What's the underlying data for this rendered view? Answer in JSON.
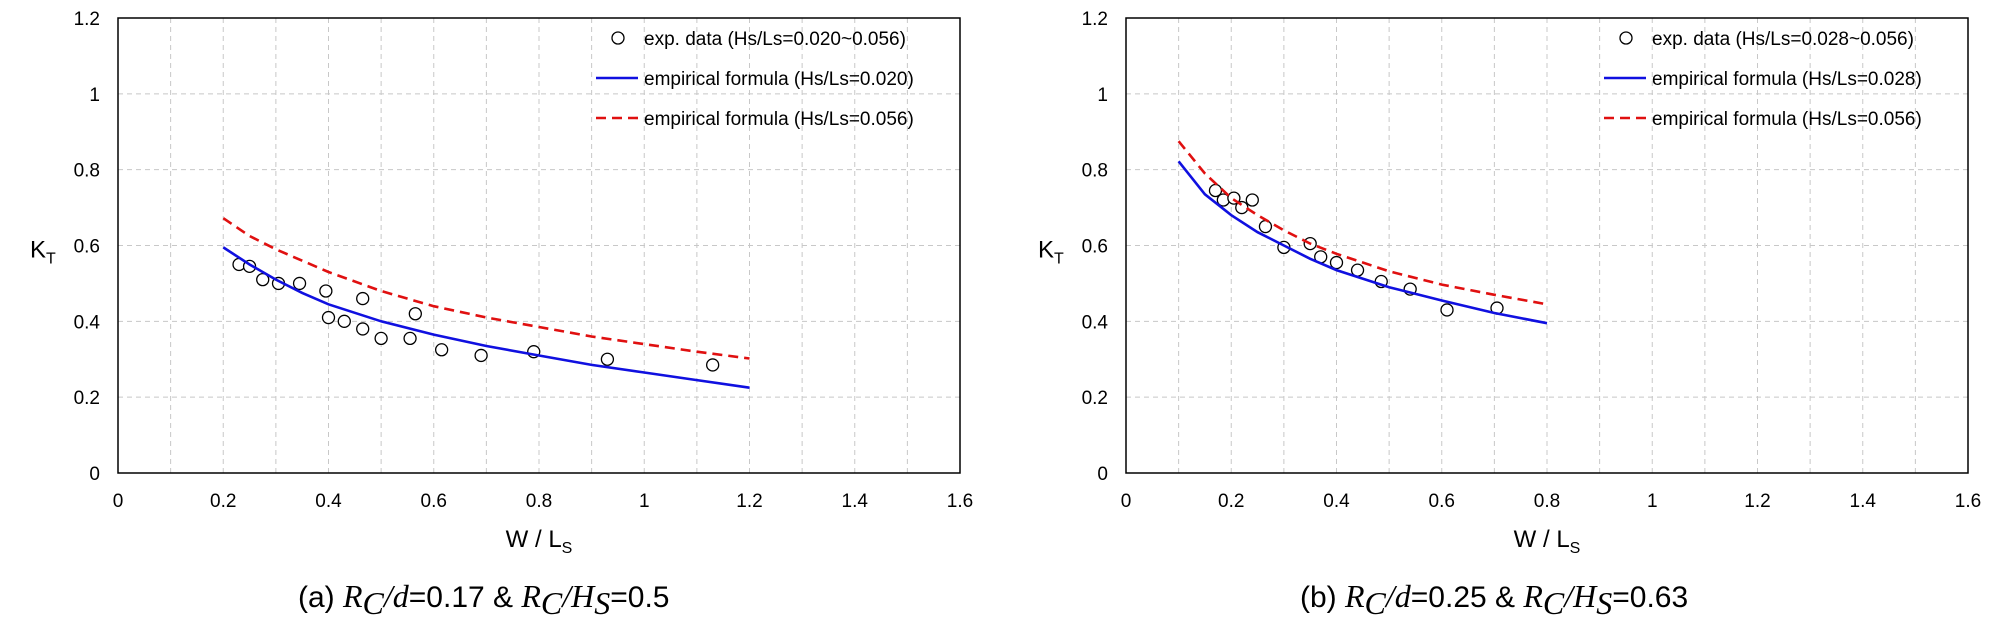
{
  "chart_data": [
    {
      "type": "scatter",
      "xlim": [
        0,
        1.6
      ],
      "ylim": [
        0,
        1.2
      ],
      "x_ticks": [
        "0",
        "0.2",
        "0.4",
        "0.6",
        "0.8",
        "1",
        "1.2",
        "1.4",
        "1.6"
      ],
      "y_ticks": [
        "0",
        "0.2",
        "0.4",
        "0.6",
        "0.8",
        "1",
        "1.2"
      ],
      "xlabel": {
        "main": "W / L",
        "sub": "S"
      },
      "ylabel": {
        "main": "K",
        "sub": "T"
      },
      "grid": true,
      "legend_position": "top-right",
      "series": [
        {
          "name": "exp. data (Hs/Ls=0.020~0.056)",
          "kind": "markers",
          "color": "#000000",
          "points": [
            [
              0.23,
              0.55
            ],
            [
              0.25,
              0.545
            ],
            [
              0.275,
              0.51
            ],
            [
              0.305,
              0.5
            ],
            [
              0.345,
              0.5
            ],
            [
              0.395,
              0.48
            ],
            [
              0.4,
              0.41
            ],
            [
              0.43,
              0.4
            ],
            [
              0.465,
              0.38
            ],
            [
              0.465,
              0.46
            ],
            [
              0.5,
              0.355
            ],
            [
              0.555,
              0.355
            ],
            [
              0.565,
              0.42
            ],
            [
              0.615,
              0.325
            ],
            [
              0.69,
              0.31
            ],
            [
              0.79,
              0.32
            ],
            [
              0.93,
              0.3
            ],
            [
              1.13,
              0.285
            ]
          ]
        },
        {
          "name": "empirical formula (Hs/Ls=0.020)",
          "kind": "solid",
          "color": "#1010e0",
          "points": [
            [
              0.2,
              0.595
            ],
            [
              0.25,
              0.55
            ],
            [
              0.3,
              0.51
            ],
            [
              0.35,
              0.475
            ],
            [
              0.4,
              0.445
            ],
            [
              0.5,
              0.4
            ],
            [
              0.6,
              0.365
            ],
            [
              0.7,
              0.335
            ],
            [
              0.8,
              0.31
            ],
            [
              0.9,
              0.285
            ],
            [
              1.0,
              0.265
            ],
            [
              1.1,
              0.245
            ],
            [
              1.2,
              0.225
            ]
          ]
        },
        {
          "name": "empirical formula (Hs/Ls=0.056)",
          "kind": "dashed",
          "color": "#e01010",
          "points": [
            [
              0.2,
              0.672
            ],
            [
              0.25,
              0.625
            ],
            [
              0.3,
              0.59
            ],
            [
              0.35,
              0.56
            ],
            [
              0.4,
              0.53
            ],
            [
              0.5,
              0.48
            ],
            [
              0.6,
              0.44
            ],
            [
              0.7,
              0.41
            ],
            [
              0.8,
              0.385
            ],
            [
              0.9,
              0.36
            ],
            [
              1.0,
              0.34
            ],
            [
              1.1,
              0.32
            ],
            [
              1.2,
              0.302
            ]
          ]
        }
      ],
      "caption": {
        "prefix": "(a) ",
        "r1": "R",
        "r1sub": "C",
        "d": "/d",
        "v1": "=0.17 & ",
        "r2": "R",
        "r2sub": "C",
        "h": "/H",
        "hsub": "S",
        "v2": "=0.5"
      }
    },
    {
      "type": "scatter",
      "xlim": [
        0,
        1.6
      ],
      "ylim": [
        0,
        1.2
      ],
      "x_ticks": [
        "0",
        "0.2",
        "0.4",
        "0.6",
        "0.8",
        "1",
        "1.2",
        "1.4",
        "1.6"
      ],
      "y_ticks": [
        "0",
        "0.2",
        "0.4",
        "0.6",
        "0.8",
        "1",
        "1.2"
      ],
      "xlabel": {
        "main": "W / L",
        "sub": "S"
      },
      "ylabel": {
        "main": "K",
        "sub": "T"
      },
      "grid": true,
      "legend_position": "top-right",
      "series": [
        {
          "name": "exp. data (Hs/Ls=0.028~0.056)",
          "kind": "markers",
          "color": "#000000",
          "points": [
            [
              0.17,
              0.745
            ],
            [
              0.185,
              0.72
            ],
            [
              0.205,
              0.725
            ],
            [
              0.22,
              0.7
            ],
            [
              0.24,
              0.72
            ],
            [
              0.265,
              0.65
            ],
            [
              0.3,
              0.595
            ],
            [
              0.35,
              0.605
            ],
            [
              0.37,
              0.57
            ],
            [
              0.4,
              0.555
            ],
            [
              0.44,
              0.535
            ],
            [
              0.485,
              0.505
            ],
            [
              0.54,
              0.485
            ],
            [
              0.61,
              0.43
            ],
            [
              0.705,
              0.435
            ]
          ]
        },
        {
          "name": "empirical formula (Hs/Ls=0.028)",
          "kind": "solid",
          "color": "#1010e0",
          "points": [
            [
              0.1,
              0.822
            ],
            [
              0.15,
              0.735
            ],
            [
              0.2,
              0.68
            ],
            [
              0.25,
              0.635
            ],
            [
              0.3,
              0.6
            ],
            [
              0.35,
              0.565
            ],
            [
              0.4,
              0.535
            ],
            [
              0.5,
              0.49
            ],
            [
              0.6,
              0.455
            ],
            [
              0.7,
              0.422
            ],
            [
              0.8,
              0.395
            ]
          ]
        },
        {
          "name": "empirical formula (Hs/Ls=0.056)",
          "kind": "dashed",
          "color": "#e01010",
          "points": [
            [
              0.1,
              0.875
            ],
            [
              0.15,
              0.79
            ],
            [
              0.2,
              0.725
            ],
            [
              0.25,
              0.68
            ],
            [
              0.3,
              0.64
            ],
            [
              0.35,
              0.605
            ],
            [
              0.4,
              0.578
            ],
            [
              0.5,
              0.532
            ],
            [
              0.6,
              0.497
            ],
            [
              0.7,
              0.47
            ],
            [
              0.8,
              0.445
            ]
          ]
        }
      ],
      "caption": {
        "prefix": "(b) ",
        "r1": "R",
        "r1sub": "C",
        "d": "/d",
        "v1": "=0.25 & ",
        "r2": "R",
        "r2sub": "C",
        "h": "/H",
        "hsub": "S",
        "v2": "=0.63"
      }
    }
  ]
}
